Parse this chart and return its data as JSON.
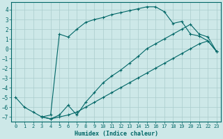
{
  "xlabel": "Humidex (Indice chaleur)",
  "bg_color": "#cde8e8",
  "grid_color": "#aacccc",
  "line_color": "#006666",
  "xlim": [
    -0.5,
    23.5
  ],
  "ylim": [
    -7.5,
    4.8
  ],
  "xticks": [
    0,
    1,
    2,
    3,
    4,
    5,
    6,
    7,
    8,
    9,
    10,
    11,
    12,
    13,
    14,
    15,
    16,
    17,
    18,
    19,
    20,
    21,
    22,
    23
  ],
  "yticks": [
    -7,
    -6,
    -5,
    -4,
    -3,
    -2,
    -1,
    0,
    1,
    2,
    3,
    4
  ],
  "line2_x": [
    0,
    1,
    2,
    3,
    4,
    5,
    6,
    7,
    8,
    9,
    10,
    11,
    12,
    13,
    14,
    15,
    16,
    17,
    18,
    19,
    20,
    21,
    22,
    23
  ],
  "line2_y": [
    -5.0,
    -6.0,
    -6.5,
    -7.0,
    -6.8,
    1.5,
    1.2,
    2.0,
    2.7,
    3.0,
    3.2,
    3.5,
    3.7,
    3.9,
    4.1,
    4.3,
    4.3,
    3.8,
    2.6,
    2.8,
    1.5,
    1.3,
    0.8,
    -0.3
  ],
  "line1_x": [
    3,
    4,
    5,
    6,
    7,
    8,
    9,
    10,
    11,
    12,
    13,
    14,
    15,
    16,
    17,
    18,
    19,
    20,
    21,
    22,
    23
  ],
  "line1_y": [
    -7.0,
    -7.2,
    -7.0,
    -6.8,
    -6.5,
    -6.0,
    -5.5,
    -5.0,
    -4.5,
    -4.0,
    -3.5,
    -3.0,
    -2.5,
    -2.0,
    -1.5,
    -1.0,
    -0.5,
    0.0,
    0.5,
    0.8,
    -0.3
  ],
  "line3_x": [
    3,
    4,
    5,
    6,
    7,
    8,
    9,
    10,
    11,
    12,
    13,
    14,
    15,
    16,
    17,
    18,
    19,
    20,
    21,
    22,
    23
  ],
  "line3_y": [
    -7.0,
    -7.2,
    -6.8,
    -5.8,
    -6.8,
    -5.5,
    -4.5,
    -3.5,
    -2.8,
    -2.2,
    -1.5,
    -0.8,
    0.0,
    0.5,
    1.0,
    1.5,
    2.0,
    2.5,
    1.5,
    1.2,
    -0.3
  ]
}
